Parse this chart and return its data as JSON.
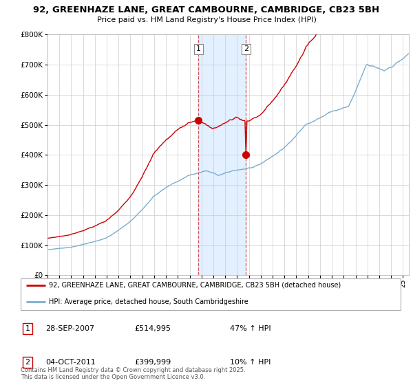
{
  "title1": "92, GREENHAZE LANE, GREAT CAMBOURNE, CAMBRIDGE, CB23 5BH",
  "title2": "Price paid vs. HM Land Registry's House Price Index (HPI)",
  "legend1": "92, GREENHAZE LANE, GREAT CAMBOURNE, CAMBRIDGE, CB23 5BH (detached house)",
  "legend2": "HPI: Average price, detached house, South Cambridgeshire",
  "annotation1_label": "1",
  "annotation1_date": "28-SEP-2007",
  "annotation1_price": "£514,995",
  "annotation1_hpi": "47% ↑ HPI",
  "annotation2_label": "2",
  "annotation2_date": "04-OCT-2011",
  "annotation2_price": "£399,999",
  "annotation2_hpi": "10% ↑ HPI",
  "footer": "Contains HM Land Registry data © Crown copyright and database right 2025.\nThis data is licensed under the Open Government Licence v3.0.",
  "line1_color": "#cc0000",
  "line2_color": "#7aadcf",
  "shade_color": "#ddeeff",
  "marker1_x": 2007.75,
  "marker2_x": 2011.75,
  "ylim": [
    0,
    800000
  ],
  "yticks": [
    0,
    100000,
    200000,
    300000,
    400000,
    500000,
    600000,
    700000,
    800000
  ],
  "ytick_labels": [
    "£0",
    "£100K",
    "£200K",
    "£300K",
    "£400K",
    "£500K",
    "£600K",
    "£700K",
    "£800K"
  ],
  "xmin": 1995.0,
  "xmax": 2025.5
}
